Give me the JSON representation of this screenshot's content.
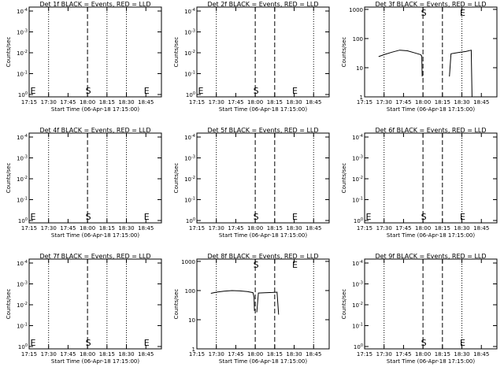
{
  "figure": {
    "xlabel": "Start Time (06-Apr-18 17:15:00)",
    "ylabel": "Counts/sec",
    "x_tick_labels": [
      "17:15",
      "17:30",
      "17:45",
      "18:00",
      "18:15",
      "18:30",
      "18:45"
    ],
    "marker_start": "S",
    "marker_end": "E"
  },
  "chart_data": [
    {
      "type": "line",
      "title": "Det 1f BLACK = Events, RED = LLD",
      "scale": "low",
      "y_tick_labels": [
        "10^0",
        "10^-1",
        "10^-2",
        "10^-3",
        "10^-4"
      ],
      "dotted_x": [
        17.5,
        18.25,
        18.5
      ],
      "dashed_x": [
        18.0
      ],
      "label_S": 18.0,
      "label_E": 18.75,
      "label_E2": 17.25,
      "series": []
    },
    {
      "type": "line",
      "title": "Det 2f BLACK = Events, RED = LLD",
      "scale": "low",
      "y_tick_labels": [
        "10^0",
        "10^-1",
        "10^-2",
        "10^-3",
        "10^-4"
      ],
      "dotted_x": [
        17.5,
        18.75
      ],
      "dashed_x": [
        18.0,
        18.25
      ],
      "label_S": 18.0,
      "label_E": 18.5,
      "label_E2": 17.25,
      "series": []
    },
    {
      "type": "line",
      "title": "Det 3f BLACK = Events, RED = LLD",
      "scale": "high",
      "y_tick_labels": [
        "1",
        "10",
        "100",
        "1000"
      ],
      "dotted_x": [
        17.5,
        18.5
      ],
      "dashed_x": [
        18.0,
        18.25
      ],
      "label_S": 18.0,
      "label_E": 18.5,
      "label_E2": null,
      "series": [
        {
          "name": "Events",
          "color": "#000000",
          "segments": [
            {
              "x": [
                17.43,
                17.5,
                17.6,
                17.7,
                17.8,
                17.9,
                17.97,
                17.985,
                17.99
              ],
              "y": [
                24,
                28,
                34,
                40,
                38,
                32,
                28,
                25,
                5
              ]
            },
            {
              "x": [
                18.34,
                18.36,
                18.45,
                18.55,
                18.62,
                18.63
              ],
              "y": [
                5,
                30,
                33,
                36,
                40,
                1
              ]
            }
          ]
        }
      ]
    },
    {
      "type": "line",
      "title": "Det 4f BLACK = Events, RED = LLD",
      "scale": "low",
      "y_tick_labels": [
        "10^0",
        "10^-1",
        "10^-2",
        "10^-3",
        "10^-4"
      ],
      "dotted_x": [
        17.5,
        18.25,
        18.5
      ],
      "dashed_x": [
        18.0
      ],
      "label_S": 18.0,
      "label_E": 18.75,
      "label_E2": 17.25,
      "series": []
    },
    {
      "type": "line",
      "title": "Det 5f BLACK = Events, RED = LLD",
      "scale": "low",
      "y_tick_labels": [
        "10^0",
        "10^-1",
        "10^-2",
        "10^-3",
        "10^-4"
      ],
      "dotted_x": [
        17.5,
        18.75
      ],
      "dashed_x": [
        18.0,
        18.25
      ],
      "label_S": 18.0,
      "label_E": 18.5,
      "label_E2": null,
      "series": []
    },
    {
      "type": "line",
      "title": "Det 6f BLACK = Events, RED = LLD",
      "scale": "low",
      "y_tick_labels": [
        "10^0",
        "10^-1",
        "10^-2",
        "10^-3",
        "10^-4"
      ],
      "dotted_x": [
        17.5,
        18.5
      ],
      "dashed_x": [
        18.0,
        18.25
      ],
      "label_S": 18.0,
      "label_E": 18.5,
      "label_E2": 17.25,
      "series": []
    },
    {
      "type": "line",
      "title": "Det 7f BLACK = Events, RED = LLD",
      "scale": "low",
      "y_tick_labels": [
        "10^0",
        "10^-1",
        "10^-2",
        "10^-3",
        "10^-4"
      ],
      "dotted_x": [
        17.5,
        18.25,
        18.5
      ],
      "dashed_x": [
        18.0
      ],
      "label_S": 18.0,
      "label_E": 18.75,
      "label_E2": 17.25,
      "series": []
    },
    {
      "type": "line",
      "title": "Det 8f BLACK = Events, RED = LLD",
      "scale": "high",
      "y_tick_labels": [
        "1",
        "10",
        "100",
        "1000"
      ],
      "dotted_x": [
        17.5,
        18.75
      ],
      "dashed_x": [
        18.0,
        18.25
      ],
      "label_S": 18.0,
      "label_E": 18.5,
      "label_E2": null,
      "series": [
        {
          "name": "Events",
          "color": "#000000",
          "segments": [
            {
              "x": [
                17.43,
                17.5,
                17.6,
                17.7,
                17.8,
                17.9,
                17.97,
                17.985,
                17.99
              ],
              "y": [
                80,
                88,
                95,
                100,
                97,
                92,
                85,
                60,
                20
              ]
            },
            {
              "x": [
                18.02,
                18.04,
                18.12,
                18.22,
                18.28,
                18.3
              ],
              "y": [
                18,
                82,
                84,
                86,
                88,
                15
              ]
            }
          ]
        }
      ]
    },
    {
      "type": "line",
      "title": "Det 9f BLACK = Events, RED = LLD",
      "scale": "low",
      "y_tick_labels": [
        "10^0",
        "10^-1",
        "10^-2",
        "10^-3",
        "10^-4"
      ],
      "dotted_x": [
        17.5,
        18.5
      ],
      "dashed_x": [
        18.0,
        18.25
      ],
      "label_S": 18.0,
      "label_E": 18.5,
      "label_E2": null,
      "series": []
    }
  ]
}
